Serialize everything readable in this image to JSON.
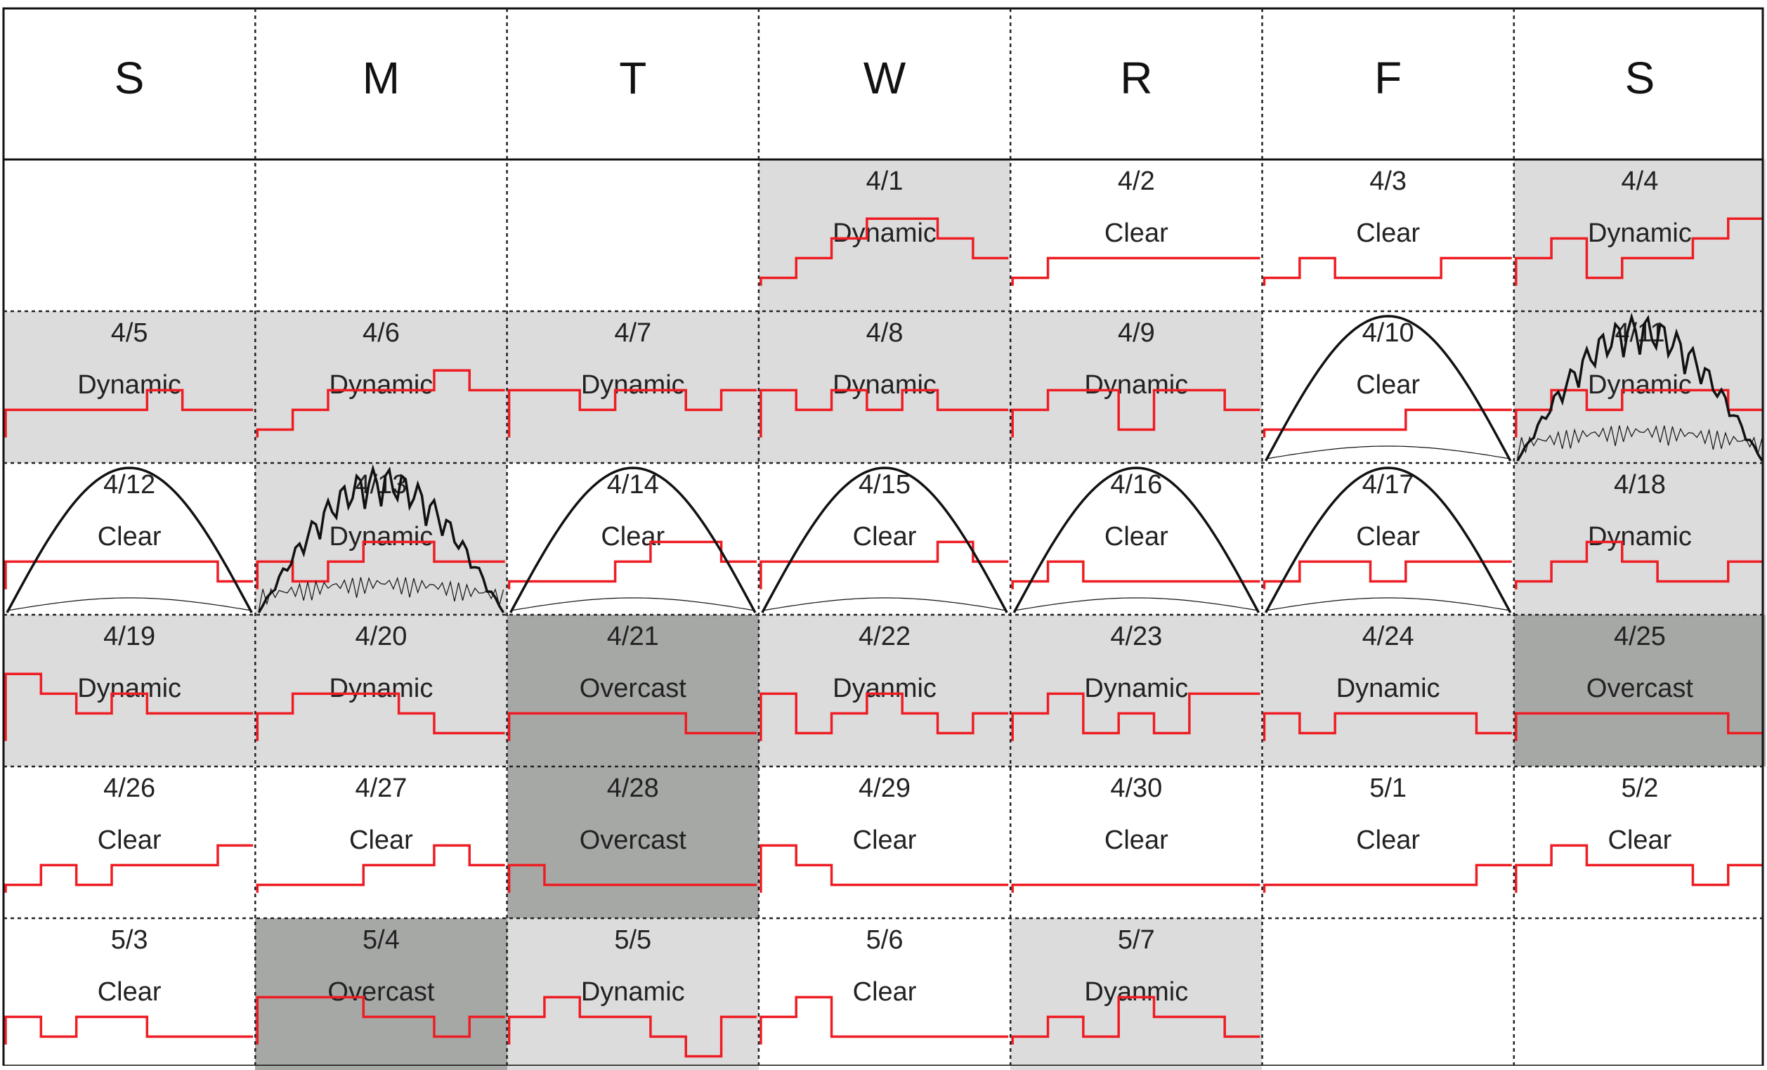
{
  "days": [
    "S",
    "M",
    "T",
    "W",
    "R",
    "F",
    "S"
  ],
  "colors": {
    "dynamic": "#dcdcdd",
    "overcast": "#a6a8a6",
    "clear": "#ffffff",
    "schedule": "#ee1d23",
    "irradiance": "#111111"
  },
  "weeks": [
    [
      null,
      null,
      null,
      {
        "date": "4/1",
        "label": "Dynamic",
        "sky": "dynamic",
        "schedule": [
          0,
          1,
          2,
          3,
          3,
          2,
          1
        ]
      },
      {
        "date": "4/2",
        "label": "Clear",
        "sky": "clear",
        "schedule": [
          0,
          1,
          1,
          1,
          1,
          1,
          1
        ]
      },
      {
        "date": "4/3",
        "label": "Clear",
        "sky": "clear",
        "schedule": [
          0,
          1,
          0,
          0,
          0,
          1,
          1
        ]
      },
      {
        "date": "4/4",
        "label": "Dynamic",
        "sky": "dynamic",
        "schedule": [
          1,
          2,
          0,
          1,
          1,
          2,
          3
        ]
      }
    ],
    [
      {
        "date": "4/5",
        "label": "Dynamic",
        "sky": "dynamic",
        "schedule": [
          1,
          1,
          1,
          1,
          2,
          1,
          1
        ]
      },
      {
        "date": "4/6",
        "label": "Dynamic",
        "sky": "dynamic",
        "schedule": [
          0,
          1,
          2,
          2,
          2,
          3,
          2
        ]
      },
      {
        "date": "4/7",
        "label": "Dynamic",
        "sky": "dynamic",
        "schedule": [
          2,
          2,
          1,
          2,
          2,
          1,
          2
        ]
      },
      {
        "date": "4/8",
        "label": "Dynamic",
        "sky": "dynamic",
        "schedule": [
          2,
          1,
          2,
          1,
          2,
          1,
          1
        ]
      },
      {
        "date": "4/9",
        "label": "Dynamic",
        "sky": "dynamic",
        "schedule": [
          1,
          2,
          2,
          0,
          2,
          2,
          1
        ]
      },
      {
        "date": "4/10",
        "label": "Clear",
        "sky": "clear",
        "schedule": [
          0,
          0,
          0,
          0,
          1,
          1,
          1
        ],
        "irradiance": true
      },
      {
        "date": "4/11",
        "label": "Dynamic",
        "sky": "dynamic",
        "schedule": [
          1,
          2,
          1,
          2,
          2,
          2,
          1
        ],
        "irradiance": true,
        "noisy": true
      }
    ],
    [
      {
        "date": "4/12",
        "label": "Clear",
        "sky": "clear",
        "schedule": [
          1,
          1,
          1,
          1,
          1,
          1,
          0
        ],
        "irradiance": true
      },
      {
        "date": "4/13",
        "label": "Dynamic",
        "sky": "dynamic",
        "schedule": [
          1,
          0,
          1,
          2,
          2,
          1,
          1
        ],
        "irradiance": true,
        "noisy": true
      },
      {
        "date": "4/14",
        "label": "Clear",
        "sky": "clear",
        "schedule": [
          0,
          0,
          0,
          1,
          2,
          2,
          1
        ],
        "irradiance": true
      },
      {
        "date": "4/15",
        "label": "Clear",
        "sky": "clear",
        "schedule": [
          1,
          1,
          1,
          1,
          1,
          2,
          1
        ],
        "irradiance": true
      },
      {
        "date": "4/16",
        "label": "Clear",
        "sky": "clear",
        "schedule": [
          0,
          1,
          0,
          0,
          0,
          0,
          0
        ],
        "irradiance": true
      },
      {
        "date": "4/17",
        "label": "Clear",
        "sky": "clear",
        "schedule": [
          0,
          1,
          1,
          0,
          1,
          1,
          1
        ],
        "irradiance": true
      },
      {
        "date": "4/18",
        "label": "Dynamic",
        "sky": "dynamic",
        "schedule": [
          0,
          1,
          2,
          1,
          0,
          0,
          1
        ]
      }
    ],
    [
      {
        "date": "4/19",
        "label": "Dynamic",
        "sky": "dynamic",
        "schedule": [
          3,
          2,
          1,
          2,
          1,
          1,
          1
        ]
      },
      {
        "date": "4/20",
        "label": "Dynamic",
        "sky": "dynamic",
        "schedule": [
          1,
          2,
          2,
          2,
          1,
          0,
          0
        ]
      },
      {
        "date": "4/21",
        "label": "Overcast",
        "sky": "overcast",
        "schedule": [
          1,
          1,
          1,
          1,
          1,
          0,
          0
        ]
      },
      {
        "date": "4/22",
        "label": "Dyanmic",
        "sky": "dynamic",
        "schedule": [
          2,
          0,
          1,
          2,
          1,
          0,
          1
        ]
      },
      {
        "date": "4/23",
        "label": "Dynamic",
        "sky": "dynamic",
        "schedule": [
          1,
          2,
          0,
          1,
          0,
          2,
          2
        ]
      },
      {
        "date": "4/24",
        "label": "Dynamic",
        "sky": "dynamic",
        "schedule": [
          1,
          0,
          1,
          1,
          1,
          1,
          0
        ]
      },
      {
        "date": "4/25",
        "label": "Overcast",
        "sky": "overcast",
        "schedule": [
          1,
          1,
          1,
          1,
          1,
          1,
          0
        ]
      }
    ],
    [
      {
        "date": "4/26",
        "label": "Clear",
        "sky": "clear",
        "schedule": [
          0,
          1,
          0,
          1,
          1,
          1,
          2
        ]
      },
      {
        "date": "4/27",
        "label": "Clear",
        "sky": "clear",
        "schedule": [
          0,
          0,
          0,
          1,
          1,
          2,
          1
        ]
      },
      {
        "date": "4/28",
        "label": "Overcast",
        "sky": "overcast",
        "schedule": [
          1,
          0,
          0,
          0,
          0,
          0,
          0
        ]
      },
      {
        "date": "4/29",
        "label": "Clear",
        "sky": "clear",
        "schedule": [
          2,
          1,
          0,
          0,
          0,
          0,
          0
        ]
      },
      {
        "date": "4/30",
        "label": "Clear",
        "sky": "clear",
        "schedule": [
          0,
          0,
          0,
          0,
          0,
          0,
          0
        ]
      },
      {
        "date": "5/1",
        "label": "Clear",
        "sky": "clear",
        "schedule": [
          0,
          0,
          0,
          0,
          0,
          0,
          1
        ]
      },
      {
        "date": "5/2",
        "label": "Clear",
        "sky": "clear",
        "schedule": [
          1,
          2,
          1,
          1,
          1,
          0,
          1
        ]
      }
    ],
    [
      {
        "date": "5/3",
        "label": "Clear",
        "sky": "clear",
        "schedule": [
          1,
          0,
          1,
          1,
          0,
          0,
          0
        ]
      },
      {
        "date": "5/4",
        "label": "Overcast",
        "sky": "overcast",
        "schedule": [
          2,
          2,
          2,
          1,
          1,
          0,
          1
        ]
      },
      {
        "date": "5/5",
        "label": "Dynamic",
        "sky": "dynamic",
        "schedule": [
          1,
          2,
          1,
          1,
          0,
          -1,
          1
        ]
      },
      {
        "date": "5/6",
        "label": "Clear",
        "sky": "clear",
        "schedule": [
          1,
          2,
          0,
          0,
          0,
          0,
          0
        ]
      },
      {
        "date": "5/7",
        "label": "Dyanmic",
        "sky": "dynamic",
        "schedule": [
          0,
          1,
          0,
          2,
          1,
          1,
          0
        ]
      },
      null,
      null
    ]
  ]
}
